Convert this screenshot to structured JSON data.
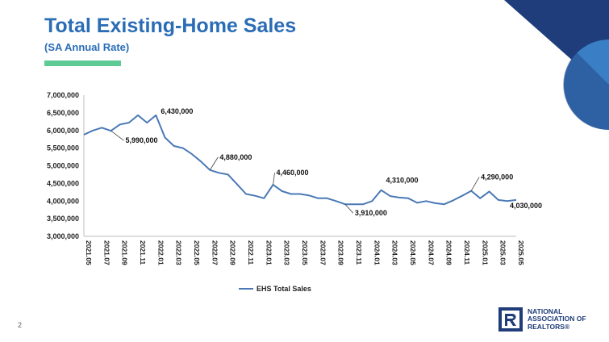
{
  "slide": {
    "page_number": "2",
    "accent_color": "#5ecb95",
    "brand_color": "#2a6cb6",
    "corner_colors": [
      "#1f3d7a",
      "#3a7fc6"
    ]
  },
  "legend": {
    "label": "EHS Total Sales",
    "color": "#4a79b6"
  },
  "logo": {
    "line1": "NATIONAL",
    "line2": "ASSOCIATION OF",
    "line3": "REALTORS®",
    "icon": "realtor-r-logo-icon",
    "color": "#1f3d7a"
  },
  "chart_data": {
    "type": "line",
    "title": "Total Existing-Home Sales",
    "subtitle": "(SA Annual Rate)",
    "xlabel": "",
    "ylabel": "",
    "ylim": [
      3000000,
      7000000
    ],
    "y_ticks": [
      "3,000,000",
      "3,500,000",
      "4,000,000",
      "4,500,000",
      "5,000,000",
      "5,500,000",
      "6,000,000",
      "6,500,000",
      "7,000,000"
    ],
    "x_tick_labels": [
      "2021.05",
      "2021.07",
      "2021.09",
      "2021.11",
      "2022.01",
      "2022.03",
      "2022.05",
      "2022.07",
      "2022.09",
      "2022.11",
      "2023.01",
      "2023.03",
      "2023.05",
      "2023.07",
      "2023.09",
      "2023.11",
      "2024.01",
      "2024.03",
      "2024.05",
      "2024.07",
      "2024.09",
      "2024.11",
      "2025.01",
      "2025.03",
      "2025.05"
    ],
    "x": [
      "2021.05",
      "2021.06",
      "2021.07",
      "2021.08",
      "2021.09",
      "2021.10",
      "2021.11",
      "2021.12",
      "2022.01",
      "2022.02",
      "2022.03",
      "2022.04",
      "2022.05",
      "2022.06",
      "2022.07",
      "2022.08",
      "2022.09",
      "2022.10",
      "2022.11",
      "2022.12",
      "2023.01",
      "2023.02",
      "2023.03",
      "2023.04",
      "2023.05",
      "2023.06",
      "2023.07",
      "2023.08",
      "2023.09",
      "2023.10",
      "2023.11",
      "2023.12",
      "2024.01",
      "2024.02",
      "2024.03",
      "2024.04",
      "2024.05",
      "2024.06",
      "2024.07",
      "2024.08",
      "2024.09",
      "2024.10",
      "2024.11",
      "2024.12",
      "2025.01",
      "2025.02",
      "2025.03",
      "2025.04",
      "2025.05"
    ],
    "series": [
      {
        "name": "EHS Total Sales",
        "values": [
          5880000,
          6000000,
          6080000,
          5990000,
          6170000,
          6220000,
          6430000,
          6220000,
          6430000,
          5800000,
          5560000,
          5500000,
          5330000,
          5120000,
          4880000,
          4800000,
          4750000,
          4480000,
          4200000,
          4150000,
          4080000,
          4460000,
          4280000,
          4200000,
          4200000,
          4160000,
          4080000,
          4080000,
          4000000,
          3910000,
          3910000,
          3910000,
          4000000,
          4310000,
          4140000,
          4100000,
          4080000,
          3950000,
          4000000,
          3940000,
          3910000,
          4020000,
          4150000,
          4290000,
          4080000,
          4270000,
          4030000,
          4000000,
          4030000
        ]
      }
    ],
    "annotations": [
      {
        "label": "6,430,000",
        "x": "2022.01"
      },
      {
        "label": "5,990,000",
        "x": "2021.08"
      },
      {
        "label": "4,880,000",
        "x": "2022.07"
      },
      {
        "label": "4,460,000",
        "x": "2023.02"
      },
      {
        "label": "3,910,000",
        "x": "2023.10"
      },
      {
        "label": "4,310,000",
        "x": "2024.02"
      },
      {
        "label": "4,290,000",
        "x": "2024.12"
      },
      {
        "label": "4,030,000",
        "x": "2025.05"
      }
    ],
    "grid": false,
    "legend_position": "bottom"
  }
}
